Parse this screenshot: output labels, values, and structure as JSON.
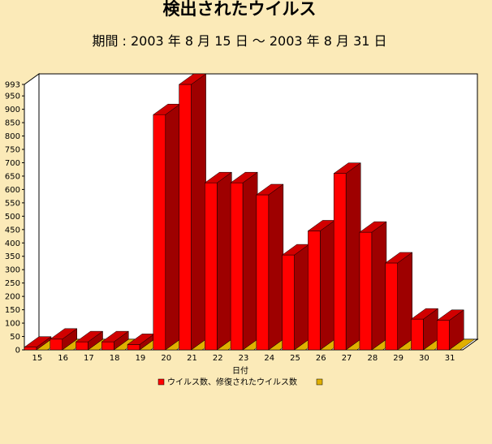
{
  "chart_data": {
    "type": "bar",
    "title": "検出されたウイルス",
    "subtitle": "期間 : 2003 年 8 月 15 日 ～ 2003 年 8 月 31 日",
    "xlabel": "日付",
    "ylabel": "",
    "ylim": [
      0,
      993
    ],
    "yticks": [
      0,
      50,
      100,
      150,
      200,
      250,
      300,
      350,
      400,
      450,
      500,
      550,
      600,
      650,
      700,
      750,
      800,
      850,
      900,
      950,
      993
    ],
    "categories": [
      "15",
      "16",
      "17",
      "18",
      "19",
      "20",
      "21",
      "22",
      "23",
      "24",
      "25",
      "26",
      "27",
      "28",
      "29",
      "30",
      "31"
    ],
    "series": [
      {
        "name": "ウイルス数、修復されたウイルス数",
        "color": "#ff0000",
        "values": [
          10,
          40,
          30,
          30,
          20,
          880,
          993,
          625,
          625,
          580,
          355,
          445,
          660,
          440,
          325,
          115,
          110
        ]
      },
      {
        "name": "",
        "color": "#e0b000",
        "values": [
          0,
          0,
          0,
          0,
          0,
          0,
          0,
          0,
          0,
          0,
          0,
          0,
          0,
          0,
          0,
          0,
          0
        ]
      }
    ],
    "legend_position": "bottom",
    "grid": false
  }
}
